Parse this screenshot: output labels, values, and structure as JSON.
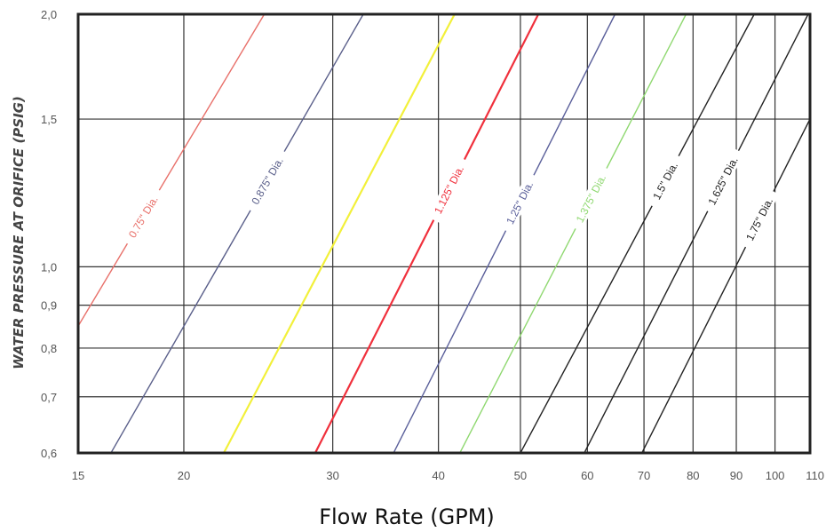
{
  "chart_data": {
    "type": "line",
    "xlabel": "Flow Rate (GPM)",
    "ylabel": "WATER PRESSURE AT ORIFICE (PSIG)",
    "x_scale": "log",
    "y_scale": "log",
    "xlim": [
      15,
      110
    ],
    "ylim": [
      0.6,
      2.0
    ],
    "x_ticks": [
      15,
      20,
      30,
      40,
      50,
      60,
      70,
      80,
      90,
      100,
      110
    ],
    "x_tick_labels": [
      "15",
      "20",
      "30",
      "40",
      "50",
      "60",
      "70",
      "80",
      "90",
      "100",
      "110"
    ],
    "y_ticks": [
      0.6,
      0.7,
      0.8,
      0.9,
      1.0,
      1.5,
      2.0
    ],
    "y_tick_labels": [
      "0,6",
      "0,7",
      "0,8",
      "0,9",
      "1,0",
      "1,5",
      "2,0"
    ],
    "grid": true,
    "legend": "none",
    "series": [
      {
        "name": "0.75\" Dia.",
        "color": "#e8706a",
        "points": [
          [
            15,
            0.85
          ],
          [
            24.9,
            2.0
          ]
        ]
      },
      {
        "name": "0.875\" Dia.",
        "color": "#5a5f8a",
        "points": [
          [
            16.4,
            0.6
          ],
          [
            32.6,
            2.0
          ]
        ]
      },
      {
        "name": "",
        "color": "#f2f03a",
        "points": [
          [
            22.3,
            0.6
          ],
          [
            41.8,
            2.0
          ]
        ]
      },
      {
        "name": "1.125\" Dia.",
        "color": "#f0303c",
        "points": [
          [
            28.6,
            0.6
          ],
          [
            52.5,
            2.0
          ]
        ]
      },
      {
        "name": "1.25\" Dia.",
        "color": "#5a5f9a",
        "points": [
          [
            35.4,
            0.6
          ],
          [
            64.7,
            2.0
          ]
        ]
      },
      {
        "name": "1.375\" Dia.",
        "color": "#8fd870",
        "points": [
          [
            42.4,
            0.6
          ],
          [
            78.5,
            2.0
          ]
        ]
      },
      {
        "name": "1.5\" Dia.",
        "color": "#222222",
        "points": [
          [
            50.0,
            0.6
          ],
          [
            94.5,
            2.0
          ]
        ]
      },
      {
        "name": "1.625\" Dia.",
        "color": "#222222",
        "points": [
          [
            59.5,
            0.6
          ],
          [
            110,
            2.02
          ]
        ]
      },
      {
        "name": "1.75\" Dia.",
        "color": "#222222",
        "points": [
          [
            69.6,
            0.6
          ],
          [
            110,
            1.5
          ]
        ]
      }
    ]
  }
}
